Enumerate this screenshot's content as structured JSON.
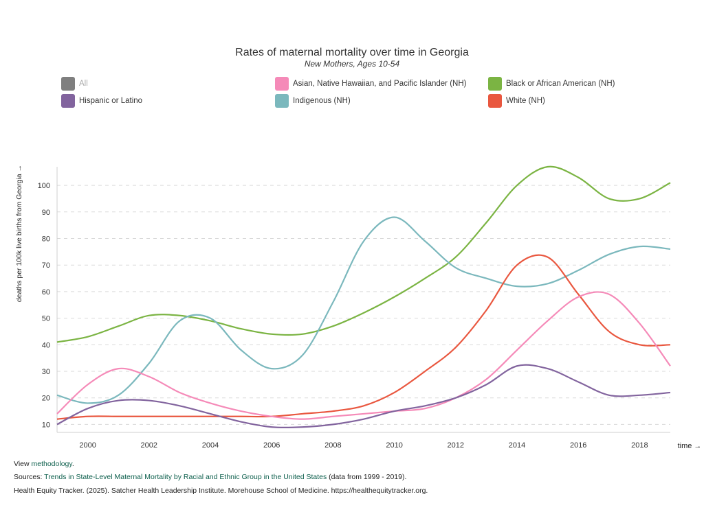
{
  "colors": {
    "All": "#7f7f7f",
    "Asian": "#f58ab8",
    "Black": "#7bb443",
    "Hispanic": "#82649e",
    "Indigenous": "#7bb8bd",
    "White": "#e9573f"
  },
  "legend": [
    {
      "label": "All",
      "color": "#7f7f7f",
      "muted": true
    },
    {
      "label": "Asian, Native Hawaiian, and Pacific Islander (NH)",
      "color": "#f58ab8"
    },
    {
      "label": "Black or African American (NH)",
      "color": "#7bb443"
    },
    {
      "label": "Hispanic or Latino",
      "color": "#82649e"
    },
    {
      "label": "Indigenous (NH)",
      "color": "#7bb8bd"
    },
    {
      "label": "White (NH)",
      "color": "#e9573f"
    }
  ],
  "chart_data": {
    "type": "line",
    "title": "Rates of maternal mortality over time in Georgia",
    "subtitle": "New Mothers, Ages 10-54",
    "xlabel": "time →",
    "ylabel": "deaths per 100k live births from Georgia →",
    "xlim": [
      1999,
      2019
    ],
    "ylim": [
      7,
      107
    ],
    "yticks": [
      10,
      20,
      30,
      40,
      50,
      60,
      70,
      80,
      90,
      100
    ],
    "xticks": [
      2000,
      2002,
      2004,
      2006,
      2008,
      2010,
      2012,
      2014,
      2016,
      2018
    ],
    "grid": "horizontal-dashed",
    "x": [
      1999,
      2000,
      2001,
      2002,
      2003,
      2004,
      2005,
      2006,
      2007,
      2008,
      2009,
      2010,
      2011,
      2012,
      2013,
      2014,
      2015,
      2016,
      2017,
      2018,
      2019
    ],
    "series": [
      {
        "name": "Black or African American (NH)",
        "color": "#7bb443",
        "values": [
          41,
          43,
          47,
          51,
          51,
          49,
          46,
          44,
          44,
          47,
          52,
          58,
          65,
          73,
          86,
          100,
          107,
          103,
          95,
          95,
          101
        ]
      },
      {
        "name": "Indigenous (NH)",
        "color": "#7bb8bd",
        "values": [
          21,
          18,
          21,
          33,
          49,
          50,
          38,
          31,
          36,
          56,
          79,
          88,
          79,
          69,
          65,
          62,
          63,
          68,
          74,
          77,
          76
        ]
      },
      {
        "name": "White (NH)",
        "color": "#e9573f",
        "values": [
          12,
          13,
          13,
          13,
          13,
          13,
          13,
          13,
          14,
          15,
          17,
          22,
          30,
          39,
          53,
          70,
          73,
          59,
          45,
          40,
          40
        ]
      },
      {
        "name": "Asian, Native Hawaiian, and Pacific Islander (NH)",
        "color": "#f58ab8",
        "values": [
          14,
          25,
          31,
          28,
          22,
          18,
          15,
          13,
          12,
          13,
          14,
          15,
          16,
          20,
          27,
          38,
          49,
          58,
          59,
          48,
          32
        ]
      },
      {
        "name": "Hispanic or Latino",
        "color": "#82649e",
        "values": [
          10,
          16,
          19,
          19,
          17,
          14,
          11,
          9,
          9,
          10,
          12,
          15,
          17,
          20,
          25,
          32,
          31,
          26,
          21,
          21,
          22
        ]
      }
    ]
  },
  "footer": {
    "view_prefix": "View ",
    "view_link": "methodology",
    "view_suffix": ".",
    "sources_prefix": "Sources: ",
    "sources_link": "Trends in State-Level Maternal Mortality by Racial and Ethnic Group in the United States",
    "sources_suffix": " (data from 1999 - 2019).",
    "citation": "Health Equity Tracker. (2025). Satcher Health Leadership Institute. Morehouse School of Medicine. https://healthequitytracker.org."
  }
}
